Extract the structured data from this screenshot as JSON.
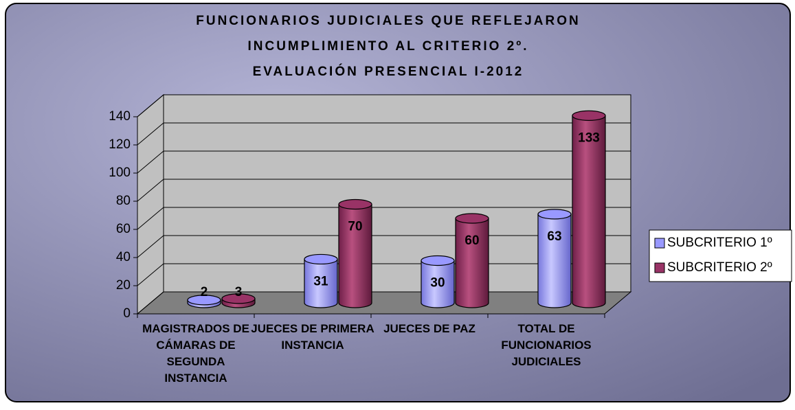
{
  "chart_data": {
    "type": "bar3d",
    "title": "FUNCIONARIOS JUDICIALES QUE REFLEJARON\nINCUMPLIMIENTO AL CRITERIO 2º.\nEVALUACIÓN PRESENCIAL I-2012",
    "categories": [
      "MAGISTRADOS DE CÁMARAS DE SEGUNDA INSTANCIA",
      "JUECES DE PRIMERA INSTANCIA",
      "JUECES DE PAZ",
      "TOTAL DE FUNCIONARIOS JUDICIALES"
    ],
    "series": [
      {
        "name": "SUBCRITERIO 1º",
        "color": "#9999ff",
        "values": [
          2,
          31,
          30,
          63
        ]
      },
      {
        "name": "SUBCRITERIO 2º",
        "color": "#993366",
        "values": [
          3,
          70,
          60,
          133
        ]
      }
    ],
    "ylim": [
      0,
      140
    ],
    "yticks": [
      0,
      20,
      40,
      60,
      80,
      100,
      120,
      140
    ],
    "grid": true,
    "legend": "right"
  }
}
